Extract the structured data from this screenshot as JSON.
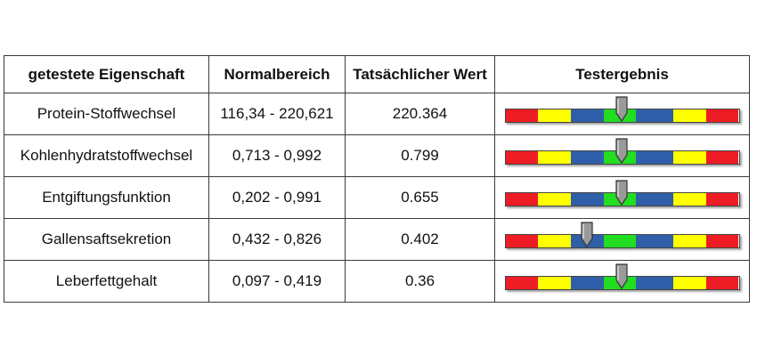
{
  "table": {
    "headers": [
      "getestete Eigenschaft",
      "Normalbereich",
      "Tatsächlicher Wert",
      "Testergebnis"
    ],
    "rows": [
      {
        "property": "Protein-Stoffwechsel",
        "normal_range": "116,34 - 220,621",
        "actual_value": "220.364",
        "result_level": 0.497
      },
      {
        "property": "Kohlenhydratstoffwechsel",
        "normal_range": "0,713 - 0,992",
        "actual_value": "0.799",
        "result_level": 0.497
      },
      {
        "property": "Entgiftungsfunktion",
        "normal_range": "0,202 - 0,991",
        "actual_value": "0.655",
        "result_level": 0.497
      },
      {
        "property": "Gallensaftsekretion",
        "normal_range": "0,432 - 0,826",
        "actual_value": "0.402",
        "result_level": 0.351
      },
      {
        "property": "Leberfettgehalt",
        "normal_range": "0,097 - 0,419",
        "actual_value": "0.36",
        "result_level": 0.497
      }
    ]
  },
  "gauge": {
    "segments": [
      {
        "color": "#ee1c24",
        "share": 0.14
      },
      {
        "color": "#ffff00",
        "share": 0.14
      },
      {
        "color": "#2f5fa8",
        "share": 0.14
      },
      {
        "color": "#22dd22",
        "share": 0.14
      },
      {
        "color": "#2f5fa8",
        "share": 0.16
      },
      {
        "color": "#ffff00",
        "share": 0.14
      },
      {
        "color": "#ee1c24",
        "share": 0.14
      }
    ],
    "pointer_color": "#9a9a9a"
  }
}
